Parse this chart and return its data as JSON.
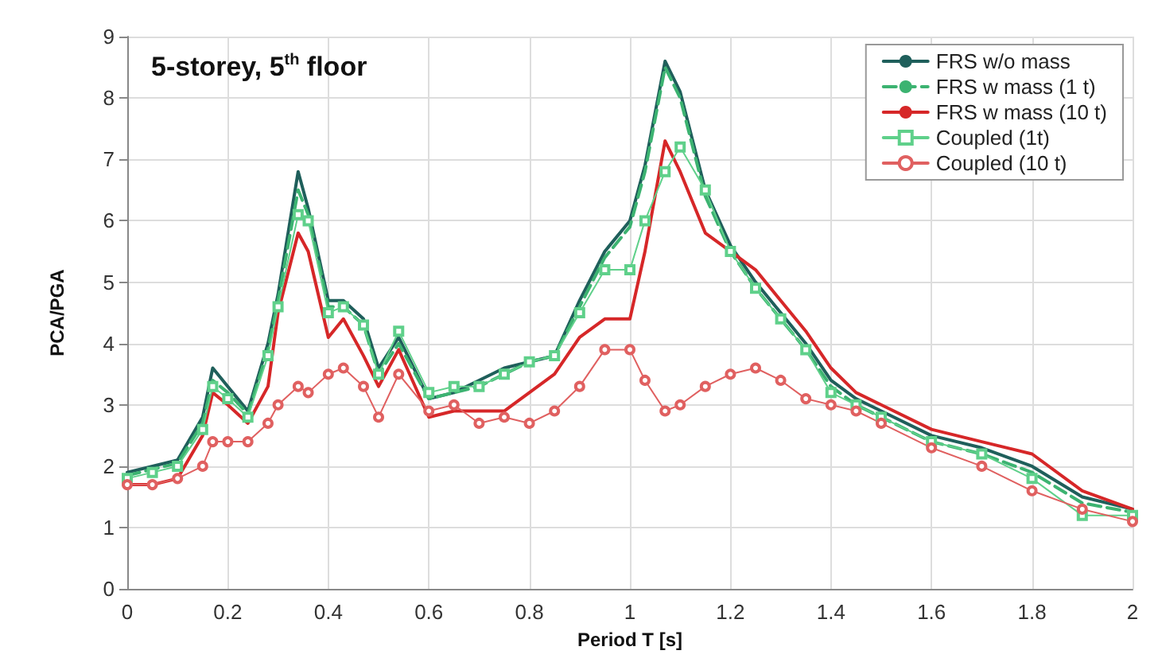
{
  "chart_data": {
    "type": "line",
    "title": "5-storey, 5$^{th}$ floor",
    "xlabel": "Period T [s]",
    "ylabel": "PCA/PGA",
    "x": [
      0,
      0.05,
      0.1,
      0.15,
      0.17,
      0.2,
      0.24,
      0.28,
      0.3,
      0.34,
      0.36,
      0.4,
      0.43,
      0.47,
      0.5,
      0.54,
      0.6,
      0.65,
      0.7,
      0.75,
      0.8,
      0.85,
      0.9,
      0.95,
      1.0,
      1.03,
      1.07,
      1.1,
      1.15,
      1.2,
      1.25,
      1.3,
      1.35,
      1.4,
      1.45,
      1.5,
      1.6,
      1.7,
      1.8,
      1.9,
      2.0
    ],
    "series": [
      {
        "name": "FRS w/o mass",
        "color": "#1f5f5b",
        "marker": "none",
        "line_style": "solid",
        "values": [
          1.9,
          2.0,
          2.1,
          2.8,
          3.6,
          3.3,
          2.9,
          4.0,
          4.8,
          6.8,
          6.2,
          4.7,
          4.7,
          4.4,
          3.6,
          4.1,
          3.1,
          3.2,
          3.4,
          3.6,
          3.7,
          3.8,
          4.7,
          5.5,
          6.0,
          6.9,
          8.6,
          8.1,
          6.5,
          5.6,
          5.0,
          4.5,
          4.0,
          3.4,
          3.1,
          2.9,
          2.5,
          2.3,
          2.0,
          1.5,
          1.3
        ]
      },
      {
        "name": "FRS w mass (1 t)",
        "color": "#3cb371",
        "marker": "none",
        "line_style": "dashed",
        "values": [
          1.85,
          1.95,
          2.05,
          2.7,
          3.4,
          3.2,
          2.85,
          3.9,
          4.7,
          6.5,
          6.1,
          4.6,
          4.6,
          4.3,
          3.5,
          4.0,
          3.1,
          3.2,
          3.3,
          3.5,
          3.7,
          3.8,
          4.6,
          5.4,
          5.9,
          6.8,
          8.5,
          8.0,
          6.4,
          5.5,
          4.9,
          4.4,
          3.9,
          3.3,
          3.0,
          2.8,
          2.4,
          2.2,
          1.9,
          1.4,
          1.25
        ]
      },
      {
        "name": "FRS w mass (10 t)",
        "color": "#d62728",
        "marker": "none",
        "line_style": "solid",
        "values": [
          1.7,
          1.7,
          1.8,
          2.5,
          3.2,
          3.0,
          2.7,
          3.3,
          4.5,
          5.8,
          5.5,
          4.1,
          4.4,
          3.8,
          3.3,
          3.9,
          2.8,
          2.9,
          2.9,
          2.9,
          3.2,
          3.5,
          4.1,
          4.4,
          4.4,
          5.5,
          7.3,
          6.8,
          5.8,
          5.5,
          5.2,
          4.7,
          4.2,
          3.6,
          3.2,
          3.0,
          2.6,
          2.4,
          2.2,
          1.6,
          1.3
        ]
      },
      {
        "name": "Coupled (1t)",
        "color": "#5fd08a",
        "marker": "square",
        "line_style": "solid",
        "values": [
          1.8,
          1.9,
          2.0,
          2.6,
          3.3,
          3.1,
          2.8,
          3.8,
          4.6,
          6.1,
          6.0,
          4.5,
          4.6,
          4.3,
          3.5,
          4.2,
          3.2,
          3.3,
          3.3,
          3.5,
          3.7,
          3.8,
          4.5,
          5.2,
          5.2,
          6.0,
          6.8,
          7.2,
          6.5,
          5.5,
          4.9,
          4.4,
          3.9,
          3.2,
          3.0,
          2.8,
          2.4,
          2.2,
          1.8,
          1.2,
          1.2
        ]
      },
      {
        "name": "Coupled (10 t)",
        "color": "#e06060",
        "marker": "circle",
        "line_style": "solid",
        "values": [
          1.7,
          1.7,
          1.8,
          2.0,
          2.4,
          2.4,
          2.4,
          2.7,
          3.0,
          3.3,
          3.2,
          3.5,
          3.6,
          3.3,
          2.8,
          3.5,
          2.9,
          3.0,
          2.7,
          2.8,
          2.7,
          2.9,
          3.3,
          3.9,
          3.9,
          3.4,
          2.9,
          3.0,
          3.3,
          3.5,
          3.6,
          3.4,
          3.1,
          3.0,
          2.9,
          2.7,
          2.3,
          2.0,
          1.6,
          1.3,
          1.1
        ]
      }
    ],
    "xlim": [
      0,
      2
    ],
    "xticks": [
      0,
      0.2,
      0.4,
      0.6,
      0.8,
      1,
      1.2,
      1.4,
      1.6,
      1.8,
      2
    ],
    "ylim": [
      0,
      9
    ],
    "yticks": [
      0,
      1,
      2,
      3,
      4,
      5,
      6,
      7,
      8,
      9
    ],
    "grid": true,
    "legend": "top right"
  }
}
